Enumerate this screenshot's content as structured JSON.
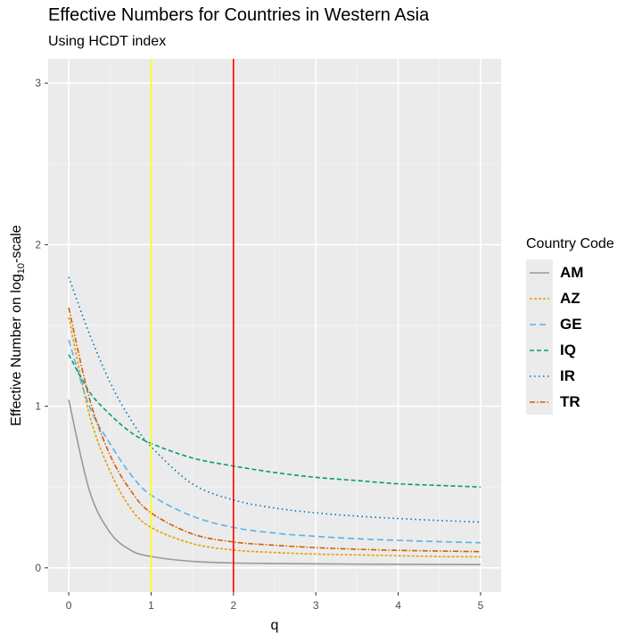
{
  "chart_data": {
    "type": "line",
    "title": "Effective Numbers for Countries in Western Asia",
    "subtitle": "Using HCDT index",
    "xlabel": "q",
    "ylabel_prefix": "Effective Number on log",
    "ylabel_sub": "10",
    "ylabel_suffix": "-scale",
    "xlim": [
      -0.25,
      5.25
    ],
    "ylim": [
      -0.15,
      3.15
    ],
    "x_ticks": [
      0,
      1,
      2,
      3,
      4,
      5
    ],
    "y_ticks": [
      0,
      1,
      2,
      3
    ],
    "x_tick_labels": [
      "0",
      "1",
      "2",
      "3",
      "4",
      "5"
    ],
    "y_tick_labels": [
      "0",
      "1",
      "2",
      "3"
    ],
    "grid": true,
    "legend_title": "Country Code",
    "legend_position": "right",
    "vlines": [
      {
        "x": 1,
        "color": "#ffff00"
      },
      {
        "x": 2,
        "color": "#ff0000"
      }
    ],
    "x": [
      0,
      0.25,
      0.5,
      0.75,
      1,
      1.5,
      2,
      2.5,
      3,
      3.5,
      4,
      4.5,
      5
    ],
    "series": [
      {
        "name": "AM",
        "color": "#999999",
        "dash": "",
        "values": [
          1.04,
          0.48,
          0.22,
          0.11,
          0.07,
          0.04,
          0.03,
          0.027,
          0.025,
          0.023,
          0.022,
          0.021,
          0.02
        ]
      },
      {
        "name": "AZ",
        "color": "#e69f00",
        "dash": "3,2",
        "values": [
          1.55,
          0.95,
          0.6,
          0.37,
          0.25,
          0.15,
          0.11,
          0.095,
          0.085,
          0.08,
          0.075,
          0.07,
          0.068
        ]
      },
      {
        "name": "GE",
        "color": "#56b4e9",
        "dash": "7,4",
        "values": [
          1.41,
          1.0,
          0.77,
          0.58,
          0.45,
          0.32,
          0.25,
          0.215,
          0.195,
          0.18,
          0.17,
          0.162,
          0.155
        ]
      },
      {
        "name": "IQ",
        "color": "#009e73",
        "dash": "5,3",
        "values": [
          1.32,
          1.09,
          0.95,
          0.84,
          0.77,
          0.68,
          0.63,
          0.59,
          0.56,
          0.54,
          0.52,
          0.51,
          0.5
        ]
      },
      {
        "name": "IR",
        "color": "#0072b2",
        "dash": "1.5,3.5",
        "values": [
          1.8,
          1.45,
          1.15,
          0.92,
          0.75,
          0.52,
          0.42,
          0.37,
          0.34,
          0.32,
          0.305,
          0.293,
          0.283
        ]
      },
      {
        "name": "TR",
        "color": "#d55e00",
        "dash": "6,2,1.5,2",
        "values": [
          1.61,
          1.05,
          0.7,
          0.48,
          0.34,
          0.21,
          0.16,
          0.14,
          0.125,
          0.115,
          0.108,
          0.104,
          0.1
        ]
      }
    ]
  }
}
